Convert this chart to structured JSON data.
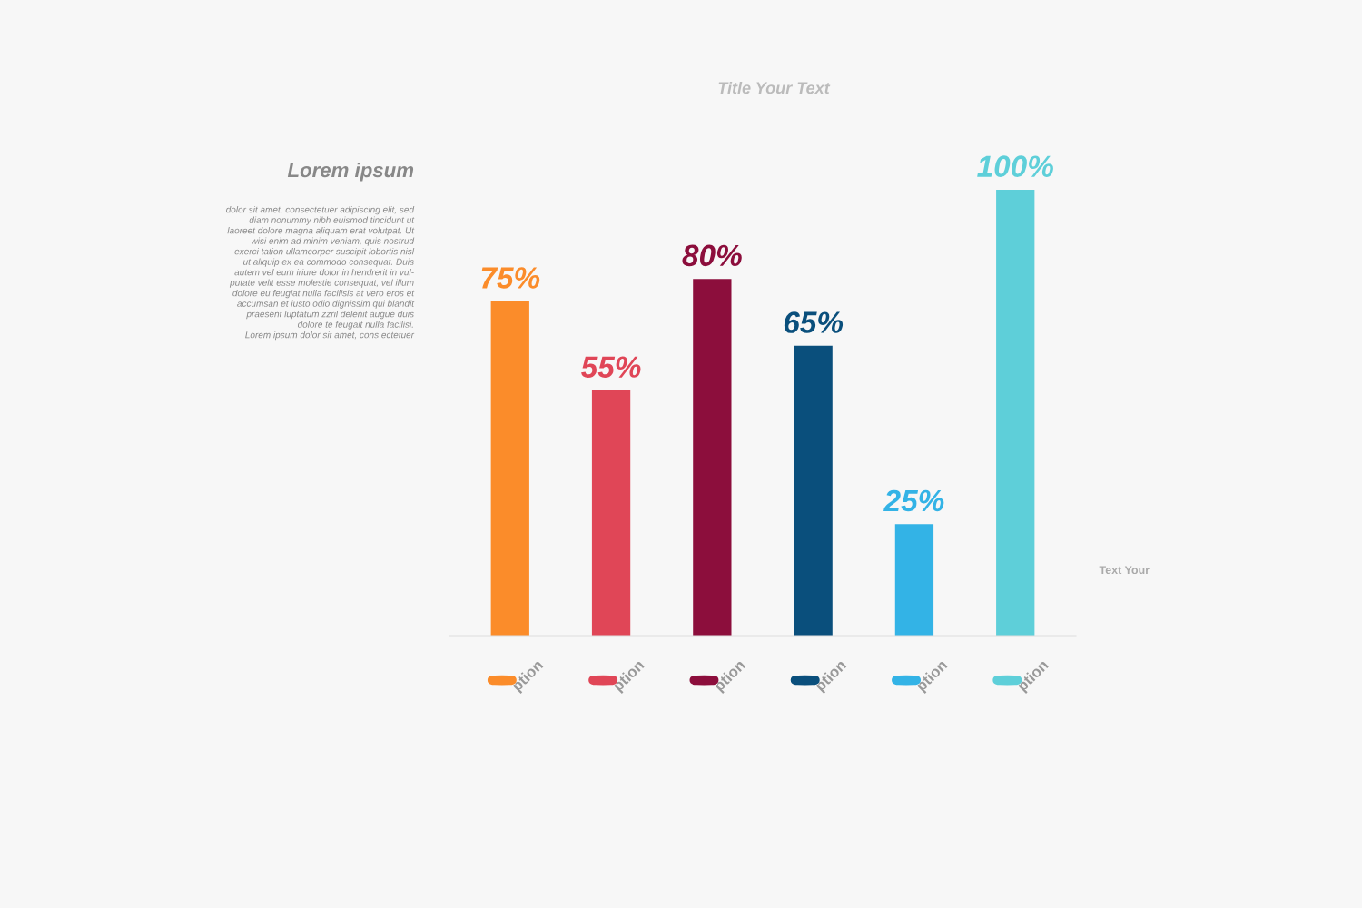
{
  "chart_data": {
    "type": "bar",
    "title": "Title Your Text",
    "categories": [
      "ption",
      "ption",
      "ption",
      "ption",
      "ption",
      "ption"
    ],
    "values": [
      75,
      55,
      80,
      65,
      25,
      100
    ],
    "colors": [
      "#fb8c2a",
      "#e04657",
      "#8c0e3c",
      "#0a4f7c",
      "#33b3e6",
      "#5ecfd9"
    ],
    "value_labels": [
      "75%",
      "55%",
      "80%",
      "65%",
      "25%",
      "100%"
    ],
    "annotations": [
      "Lorem ipsum",
      "dolor sit amet, consectetuer adipiscing elit, sed\ndiam nonummy nibh euismod tincidunt ut\nlaoreet dolore magna aliquam erat volutpat. Ut\nwisi enim ad minim veniam, quis nostrud\nexerci tation ullamcorper suscipit lobortis nisl\nut aliquip ex ea commodo consequat. Duis\nautem vel eum iriure dolor in hendrerit in vul-\nputate velit esse molestie consequat, vel illum\ndolore eu feugiat nulla facilisis at vero eros et\naccumsan et iusto odio dignissim qui blandit\npraesent luptatum zzril delenit augue duis\ndolore te feugait nulla facilisi.\nLorem ipsum dolor sit amet, cons ectetuer",
      "Text Your"
    ],
    "grid": false,
    "legend": false
  }
}
